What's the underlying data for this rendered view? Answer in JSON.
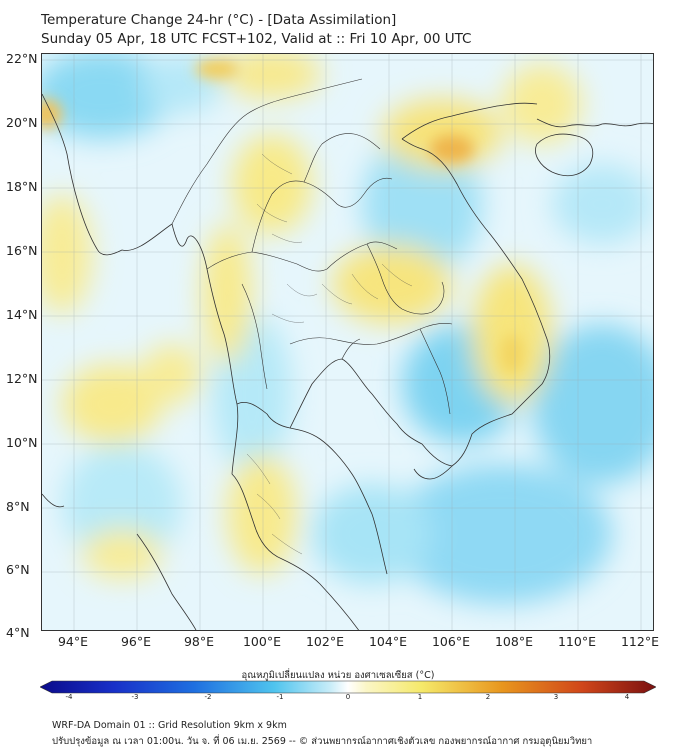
{
  "header": {
    "title": "Temperature Change 24-hr (°C) - [Data Assimilation]",
    "subtitle": "Sunday 05 Apr, 18 UTC FCST+102, Valid at :: Fri 10 Apr, 00 UTC"
  },
  "map": {
    "lat_labels": [
      "22°N",
      "20°N",
      "18°N",
      "16°N",
      "14°N",
      "12°N",
      "10°N",
      "8°N",
      "6°N",
      "4°N"
    ],
    "lon_labels": [
      "94°E",
      "96°E",
      "98°E",
      "100°E",
      "102°E",
      "104°E",
      "106°E",
      "108°E",
      "110°E",
      "112°E"
    ],
    "lat_range": [
      4,
      22
    ],
    "lon_range": [
      93,
      112.3
    ],
    "gridlines": true
  },
  "colorbar": {
    "title": "อุณหภูมิเปลี่ยนแปลง หน่วย องศาเซลเซียส (°C)",
    "ticks": [
      "-4",
      "-3",
      "-2",
      "-1",
      "0",
      "1",
      "2",
      "3",
      "4"
    ],
    "range": [
      -4,
      4
    ],
    "colors": {
      "min": "#0b0b8a",
      "cold": "#1f6fe0",
      "cool": "#4fc4ee",
      "neutral": "#ffffff",
      "warm": "#f5e96a",
      "hot": "#e8961e",
      "max": "#7a1010"
    }
  },
  "footer": {
    "line1": "WRF-DA Domain 01 :: Grid Resolution 9km x 9km",
    "line2": "ปรับปรุงข้อมูล ณ เวลา 01:00น. วัน จ. ที่ 06 เม.ย. 2569 -- © ส่วนพยากรณ์อากาศเชิงตัวเลข กองพยากรณ์อากาศ กรมอุตุนิยมวิทยา"
  }
}
